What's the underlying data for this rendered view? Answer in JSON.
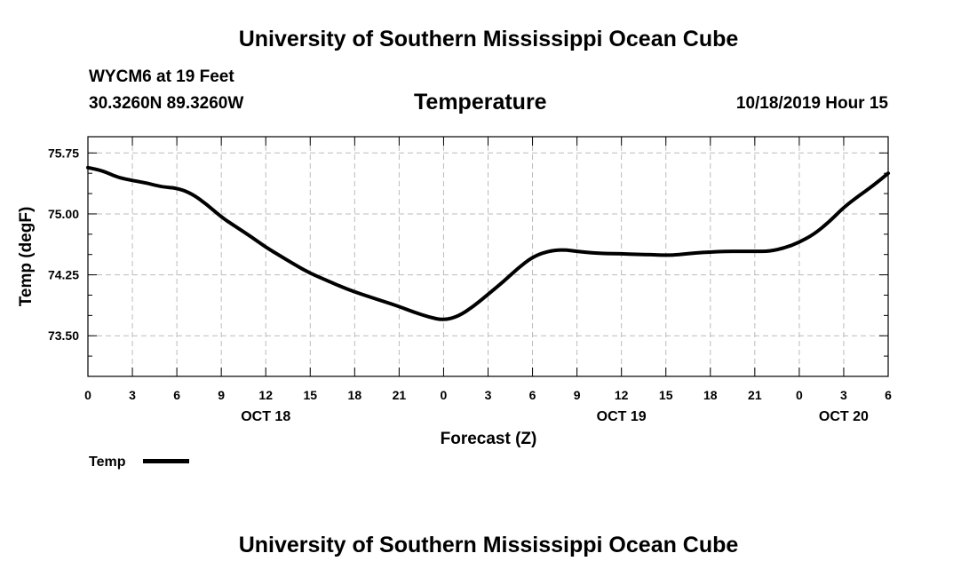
{
  "header": {
    "title_top": "University of Southern Mississippi Ocean Cube",
    "title_bottom": "University of Southern Mississippi Ocean Cube",
    "station": "WYCM6 at 19 Feet",
    "location": "30.3260N 89.3260W",
    "chart_title": "Temperature",
    "timestamp": "10/18/2019 Hour 15"
  },
  "colors": {
    "line": "#000000",
    "grid": "#bbbbbb",
    "axis": "#000000"
  },
  "chart_data": {
    "type": "line",
    "title": "Temperature",
    "xlabel": "Forecast (Z)",
    "ylabel": "Temp (degF)",
    "xlim": [
      0,
      54
    ],
    "ylim": [
      73.0,
      75.95
    ],
    "yticks": [
      73.5,
      74.25,
      75.0,
      75.75
    ],
    "ytick_labels": [
      "73.50",
      "74.25",
      "75.00",
      "75.75"
    ],
    "xticks": [
      0,
      3,
      6,
      9,
      12,
      15,
      18,
      21,
      24,
      27,
      30,
      33,
      36,
      39,
      42,
      45,
      48,
      51,
      54
    ],
    "xtick_labels": [
      "0",
      "3",
      "6",
      "9",
      "12",
      "15",
      "18",
      "21",
      "0",
      "3",
      "6",
      "9",
      "12",
      "15",
      "18",
      "21",
      "0",
      "3",
      "6"
    ],
    "date_labels": [
      {
        "x": 12,
        "label": "OCT 18"
      },
      {
        "x": 36,
        "label": "OCT 19"
      },
      {
        "x": 51,
        "label": "OCT 20"
      }
    ],
    "legend": {
      "position": "bottom-left",
      "label": "Temp"
    },
    "series": [
      {
        "name": "Temp",
        "x": [
          0,
          1,
          2,
          3,
          4,
          5,
          6,
          7,
          8,
          9,
          10,
          11,
          12,
          13,
          14,
          15,
          16,
          17,
          18,
          19,
          20,
          21,
          22,
          23,
          24,
          25,
          26,
          27,
          28,
          29,
          30,
          31,
          32,
          33,
          34,
          35,
          36,
          37,
          38,
          39,
          40,
          41,
          42,
          43,
          44,
          45,
          46,
          47,
          48,
          49,
          50,
          51,
          52,
          53,
          54
        ],
        "values": [
          75.57,
          75.53,
          75.45,
          75.41,
          75.38,
          75.33,
          75.32,
          75.25,
          75.12,
          74.96,
          74.84,
          74.72,
          74.59,
          74.48,
          74.37,
          74.27,
          74.19,
          74.11,
          74.04,
          73.98,
          73.92,
          73.86,
          73.79,
          73.73,
          73.69,
          73.74,
          73.86,
          74.01,
          74.16,
          74.33,
          74.47,
          74.54,
          74.56,
          74.54,
          74.52,
          74.51,
          74.51,
          74.5,
          74.5,
          74.49,
          74.5,
          74.52,
          74.53,
          74.54,
          74.54,
          74.54,
          74.54,
          74.58,
          74.65,
          74.75,
          74.9,
          75.08,
          75.22,
          75.35,
          75.5
        ]
      }
    ]
  }
}
